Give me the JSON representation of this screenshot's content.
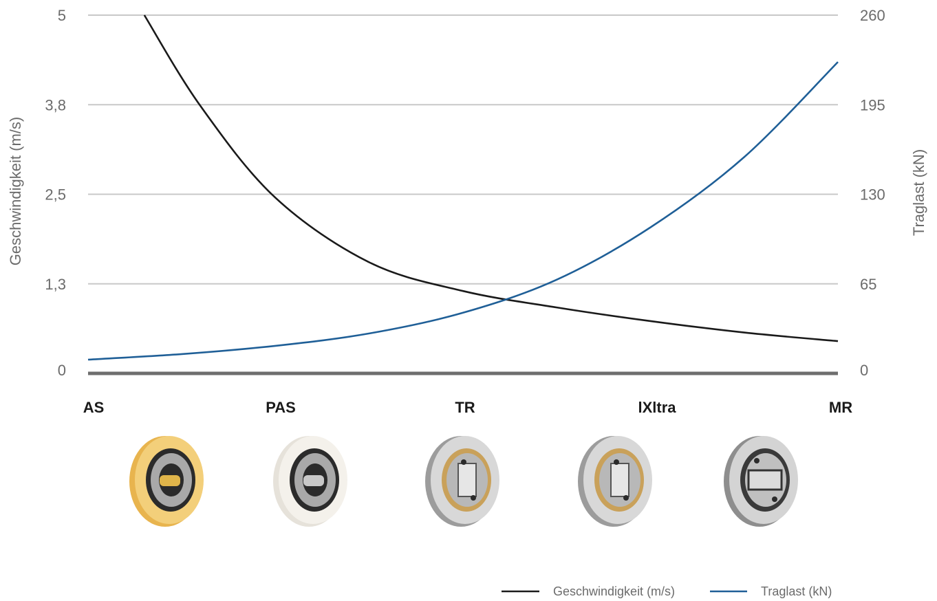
{
  "chart_data": {
    "type": "line",
    "categories": [
      "AS",
      "PAS",
      "TR",
      "lXltra",
      "MR"
    ],
    "x": [
      0,
      0.5,
      1,
      1.5,
      2,
      2.5,
      3,
      3.5,
      4
    ],
    "y_left_ticks": [
      "0",
      "1,3",
      "2,5",
      "3,8",
      "5"
    ],
    "y_right_ticks": [
      "0",
      "65",
      "130",
      "195",
      "260"
    ],
    "ylabel_left": "Geschwindigkeit (m/s)",
    "ylabel_right": "Traglast (kN)",
    "ylim_left": [
      0,
      5
    ],
    "ylim_right": [
      0,
      260
    ],
    "grid": true,
    "legend_position": "bottom-right",
    "series": [
      {
        "name": "Geschwindigkeit (m/s)",
        "axis": "left",
        "color": "#1a1a1a",
        "points": [
          [
            0.3,
            5.0
          ],
          [
            0.6,
            3.73
          ],
          [
            1.0,
            2.45
          ],
          [
            1.5,
            1.55
          ],
          [
            2.0,
            1.15
          ],
          [
            2.5,
            0.92
          ],
          [
            3.0,
            0.73
          ],
          [
            3.5,
            0.57
          ],
          [
            4.0,
            0.45
          ]
        ]
      },
      {
        "name": "Traglast (kN)",
        "axis": "right",
        "color": "#1f5f97",
        "points": [
          [
            0.0,
            10.0
          ],
          [
            0.5,
            14.0
          ],
          [
            1.0,
            20.0
          ],
          [
            1.5,
            29.0
          ],
          [
            2.0,
            44.0
          ],
          [
            2.5,
            68.0
          ],
          [
            3.0,
            106.0
          ],
          [
            3.5,
            157.0
          ],
          [
            4.0,
            226.0
          ]
        ]
      }
    ],
    "images": [
      {
        "category": "AS",
        "name": "as-wheel-icon"
      },
      {
        "category": "PAS",
        "name": "pas-wheel-icon"
      },
      {
        "category": "TR",
        "name": "tr-bearing-icon"
      },
      {
        "category": "lXltra",
        "name": "ixltra-bearing-icon"
      },
      {
        "category": "MR",
        "name": "mr-bearing-icon"
      }
    ]
  }
}
